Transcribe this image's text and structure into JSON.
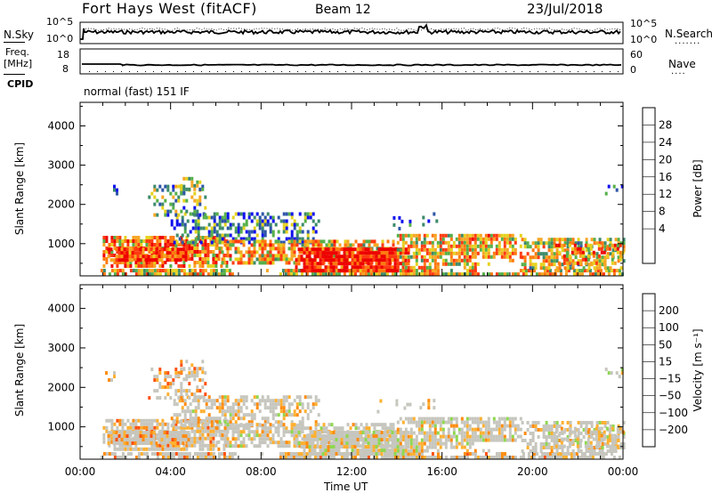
{
  "header": {
    "station": "Fort Hays West (fitACF)",
    "beam": "Beam 12",
    "date": "23/Jul/2018"
  },
  "top_panels": {
    "nsky_label": "N.Sky",
    "freq_label_1": "Freq.",
    "freq_label_2": "[MHz]",
    "cpid_label": "CPID",
    "nsearch_label": "N.Search",
    "nave_label": "Nave",
    "nsky_ticks": [
      "10^5",
      "10^0"
    ],
    "nsearch_ticks": [
      "10^5",
      "10^0"
    ],
    "freq_ticks": [
      "18",
      "8"
    ],
    "nave_ticks": [
      "60",
      "0"
    ],
    "cpid_text": "normal (fast) 151 IF"
  },
  "colors": {
    "power_scale": [
      "#1010ee",
      "#2d55a8",
      "#3c8a6a",
      "#56b04a",
      "#e6d21e",
      "#f6a623",
      "#ff7a10",
      "#ff3a10",
      "#ee0000"
    ],
    "velocity_scale": [
      "#ee1010",
      "#ff5010",
      "#ff8c10",
      "#ffb030",
      "#c6c6be",
      "#8ed850",
      "#2e9a3a",
      "#2a55aa",
      "#2020cc"
    ]
  },
  "chart_data": [
    {
      "type": "heatmap",
      "name": "power",
      "x_ticks": [
        "00:00",
        "04:00",
        "08:00",
        "12:00",
        "16:00",
        "20:00",
        "00:00"
      ],
      "x_hours": [
        0,
        4,
        8,
        12,
        16,
        20,
        24
      ],
      "xlabel": "Time UT",
      "ylabel": "Slant Range [km]",
      "y_ticks": [
        "4000",
        "3000",
        "2000",
        "1000"
      ],
      "y_values": [
        4000,
        3000,
        2000,
        1000
      ],
      "ylim": [
        180,
        4600
      ],
      "colorbar_label": "Power [dB]",
      "colorbar_ticks": [
        "28",
        "24",
        "20",
        "16",
        "12",
        "8",
        "4"
      ],
      "colorbar_range": [
        0,
        32
      ]
    },
    {
      "type": "heatmap",
      "name": "velocity",
      "x_ticks": [
        "00:00",
        "04:00",
        "08:00",
        "12:00",
        "16:00",
        "20:00",
        "00:00"
      ],
      "x_hours": [
        0,
        4,
        8,
        12,
        16,
        20,
        24
      ],
      "xlabel": "Time UT",
      "ylabel": "Slant Range [km]",
      "y_ticks": [
        "4000",
        "3000",
        "2000",
        "1000"
      ],
      "y_values": [
        4000,
        3000,
        2000,
        1000
      ],
      "ylim": [
        180,
        4600
      ],
      "colorbar_label": "Velocity [m s⁻¹]",
      "colorbar_ticks": [
        "200",
        "100",
        "50",
        "15",
        "−15",
        "−50",
        "−100",
        "−200"
      ]
    }
  ]
}
